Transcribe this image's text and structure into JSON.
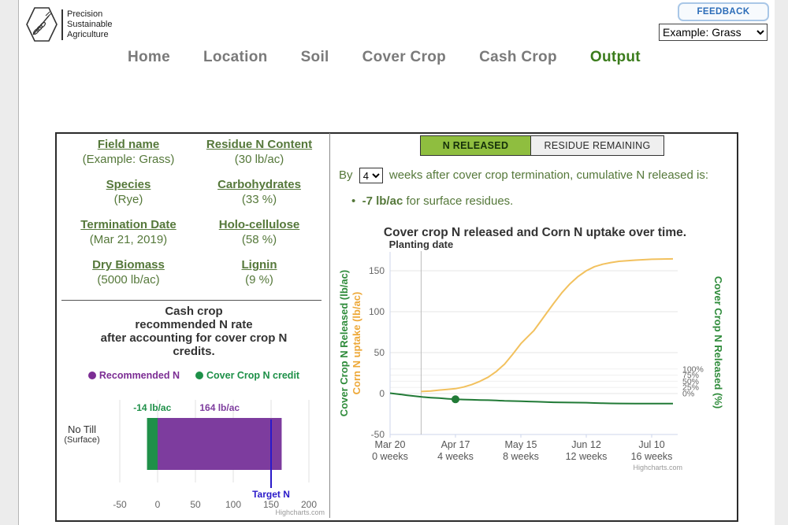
{
  "header": {
    "logo_lines": [
      "Precision",
      "Sustainable",
      "Agriculture"
    ],
    "feedback_label": "FEEDBACK",
    "example_selected": "Example: Grass",
    "nav": [
      {
        "label": "Home",
        "active": false
      },
      {
        "label": "Location",
        "active": false
      },
      {
        "label": "Soil",
        "active": false
      },
      {
        "label": "Cover Crop",
        "active": false
      },
      {
        "label": "Cash Crop",
        "active": false
      },
      {
        "label": "Output",
        "active": true
      }
    ],
    "nav_active_color": "#3b7c1c"
  },
  "left_panel": {
    "fields": [
      {
        "label": "Field name",
        "value": "(Example: Grass)"
      },
      {
        "label": "Residue N Content",
        "value": "(30 lb/ac)"
      },
      {
        "label": "Species",
        "value": "(Rye)"
      },
      {
        "label": "Carbohydrates",
        "value": "(33 %)"
      },
      {
        "label": "Termination Date",
        "value": "(Mar 21, 2019)"
      },
      {
        "label": "Holo-cellulose",
        "value": "(58 %)"
      },
      {
        "label": "Dry Biomass",
        "value": "(5000 lb/ac)"
      },
      {
        "label": "Lignin",
        "value": "(9 %)"
      }
    ]
  },
  "tabs": {
    "active": "N RELEASED",
    "inactive": "RESIDUE REMAINING",
    "active_bg": "#8fbe3f"
  },
  "summary": {
    "prefix": "By",
    "weeks_selected": "4",
    "suffix": "weeks after cover crop termination, cumulative N released is:",
    "bullet_strong": "-7 lb/ac",
    "bullet_rest": " for surface residues."
  },
  "chart_data": [
    {
      "type": "bar",
      "orientation": "horizontal",
      "title_lines": [
        "Cash crop",
        "recommended N rate",
        "after accounting for cover crop N",
        "credits."
      ],
      "category_lines": [
        "No Till",
        "(Surface)"
      ],
      "series": [
        {
          "name": "Cover Crop N credit",
          "value": -14,
          "label": "-14 lb/ac",
          "color": "#1f9049"
        },
        {
          "name": "Recommended N",
          "value": 164,
          "label": "164 lb/ac",
          "color": "#7d3c9e"
        }
      ],
      "legend": [
        {
          "label": "Recommended N",
          "color": "#7c2d94"
        },
        {
          "label": "Cover Crop N credit",
          "color": "#1d9048"
        }
      ],
      "target_line": {
        "label": "Target N",
        "value": 150,
        "color": "#2a1ac9"
      },
      "xlim": [
        -50,
        200
      ],
      "xticks": [
        -50,
        0,
        50,
        100,
        150,
        200
      ],
      "credit": "Highcharts.com"
    },
    {
      "type": "line",
      "title": "Cover crop N released and Corn N uptake over time.",
      "plot_line": {
        "label": "Planting date",
        "week": 1.9
      },
      "x_ticks": [
        {
          "week": 0,
          "date": "Mar 20",
          "weeks": "0 weeks"
        },
        {
          "week": 4,
          "date": "Apr 17",
          "weeks": "4 weeks"
        },
        {
          "week": 8,
          "date": "May 15",
          "weeks": "8 weeks"
        },
        {
          "week": 12,
          "date": "Jun 12",
          "weeks": "12 weeks"
        },
        {
          "week": 16,
          "date": "Jul 10",
          "weeks": "16 weeks"
        }
      ],
      "y_left": {
        "ticks": [
          150,
          100,
          50,
          0,
          -50
        ],
        "range": [
          -50,
          170
        ],
        "titles": [
          {
            "text": "Cover Crop N Released (lb/ac)",
            "color": "#2e8b3a"
          },
          {
            "text": "Corn N uptake (lb/ac)",
            "color": "#eda838"
          }
        ]
      },
      "y_right": {
        "title": "Cover Crop N Released (%)",
        "color": "#2e8b3a",
        "ticks": [
          {
            "label": "100%",
            "pct": 100
          },
          {
            "label": "75%",
            "pct": 75
          },
          {
            "label": "50%",
            "pct": 50
          },
          {
            "label": "25%",
            "pct": 25
          },
          {
            "label": "0%",
            "pct": 0
          }
        ],
        "pct_full_lb": 30
      },
      "series": [
        {
          "name": "Corn N uptake",
          "color": "#f2c15e",
          "points": [
            [
              1.9,
              2.5
            ],
            [
              2.5,
              3.2
            ],
            [
              3,
              4.2
            ],
            [
              3.5,
              5
            ],
            [
              4,
              6
            ],
            [
              4.5,
              8
            ],
            [
              5,
              11
            ],
            [
              5.5,
              15
            ],
            [
              6,
              20
            ],
            [
              6.5,
              27
            ],
            [
              7,
              36
            ],
            [
              7.5,
              48
            ],
            [
              8,
              61
            ],
            [
              8.4,
              69
            ],
            [
              8.8,
              77
            ],
            [
              9.2,
              88
            ],
            [
              9.6,
              99
            ],
            [
              10,
              110
            ],
            [
              10.5,
              123
            ],
            [
              11,
              134
            ],
            [
              11.5,
              143
            ],
            [
              12,
              150
            ],
            [
              12.5,
              155
            ],
            [
              13,
              158
            ],
            [
              13.5,
              160
            ],
            [
              14,
              161.5
            ],
            [
              15,
              163
            ],
            [
              16,
              164
            ],
            [
              17.3,
              164.5
            ]
          ]
        },
        {
          "name": "Cover Crop N Released",
          "color": "#217a36",
          "points": [
            [
              0,
              0.5
            ],
            [
              0.5,
              -0.7
            ],
            [
              1,
              -2
            ],
            [
              1.5,
              -3.2
            ],
            [
              2,
              -4.2
            ],
            [
              2.5,
              -5
            ],
            [
              3,
              -5.6
            ],
            [
              3.5,
              -6.3
            ],
            [
              4,
              -7
            ],
            [
              4.5,
              -7.3
            ],
            [
              5,
              -7.6
            ],
            [
              5.5,
              -7.9
            ],
            [
              6,
              -8.1
            ],
            [
              6.5,
              -8.5
            ],
            [
              7,
              -8.9
            ],
            [
              7.5,
              -9.1
            ],
            [
              8,
              -9.4
            ],
            [
              8.5,
              -9.7
            ],
            [
              9,
              -10
            ],
            [
              9.5,
              -10.4
            ],
            [
              10,
              -10.7
            ],
            [
              10.5,
              -10.9
            ],
            [
              11,
              -11
            ],
            [
              11.5,
              -11.1
            ],
            [
              12,
              -11.2
            ],
            [
              12.5,
              -11.5
            ],
            [
              13,
              -11.8
            ],
            [
              13.5,
              -12
            ],
            [
              14,
              -12.1
            ],
            [
              15,
              -12.2
            ],
            [
              16,
              -12.2
            ],
            [
              17.3,
              -12.3
            ]
          ],
          "marker": {
            "week": 4,
            "value": -7
          }
        }
      ],
      "credit": "Highcharts.com"
    }
  ]
}
